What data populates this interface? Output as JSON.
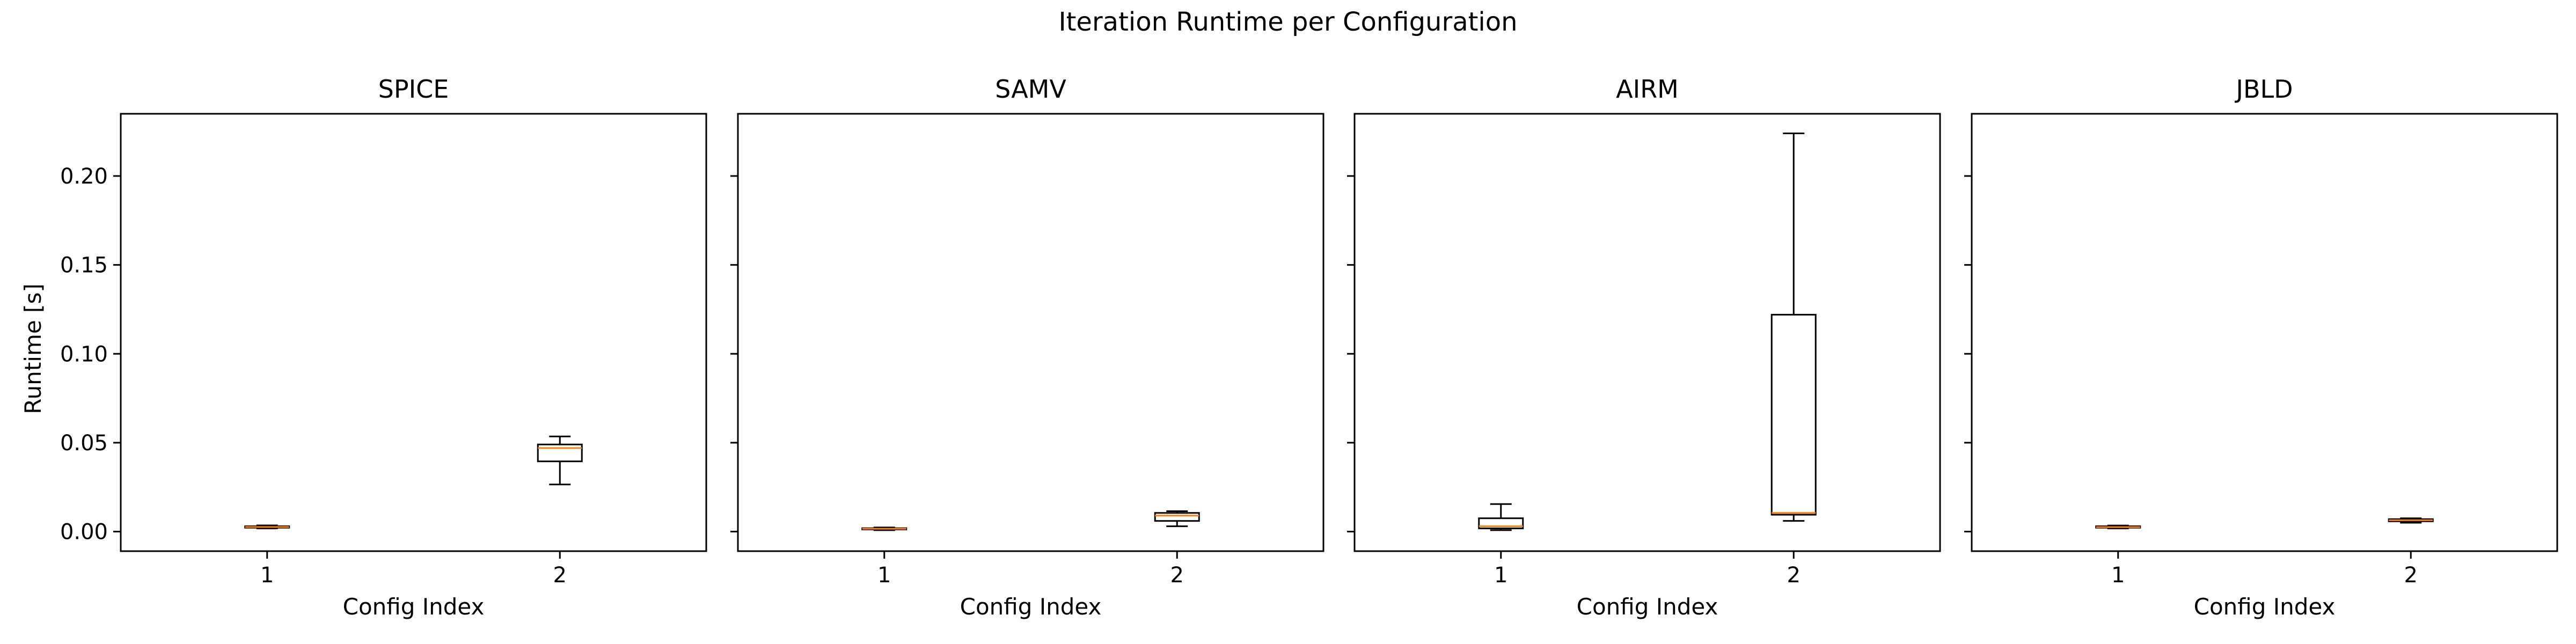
{
  "figure": {
    "suptitle": "Iteration Runtime per Configuration"
  },
  "colors": {
    "box": "#000000",
    "median": "#ff7f0e",
    "background": "#ffffff"
  },
  "chart_data": {
    "type": "box",
    "shared_y": true,
    "ylabel": "Runtime [s]",
    "xlabel": "Config Index",
    "ylim": [
      -0.011,
      0.235
    ],
    "yticks": [
      0.0,
      0.05,
      0.1,
      0.15,
      0.2
    ],
    "ytick_labels": [
      "0.00",
      "0.05",
      "0.10",
      "0.15",
      "0.20"
    ],
    "categories": [
      "1",
      "2"
    ],
    "panels": [
      {
        "title": "SPICE",
        "boxes": [
          {
            "category": "1",
            "whisker_low": 0.0018,
            "q1": 0.0022,
            "median": 0.0026,
            "q3": 0.003,
            "whisker_high": 0.0035
          },
          {
            "category": "2",
            "whisker_low": 0.0265,
            "q1": 0.0395,
            "median": 0.047,
            "q3": 0.049,
            "whisker_high": 0.0535
          }
        ]
      },
      {
        "title": "SAMV",
        "boxes": [
          {
            "category": "1",
            "whisker_low": 0.0008,
            "q1": 0.0012,
            "median": 0.0016,
            "q3": 0.0019,
            "whisker_high": 0.0023
          },
          {
            "category": "2",
            "whisker_low": 0.003,
            "q1": 0.006,
            "median": 0.009,
            "q3": 0.0105,
            "whisker_high": 0.0115
          }
        ]
      },
      {
        "title": "AIRM",
        "boxes": [
          {
            "category": "1",
            "whisker_low": 0.0008,
            "q1": 0.0018,
            "median": 0.003,
            "q3": 0.0075,
            "whisker_high": 0.0155
          },
          {
            "category": "2",
            "whisker_low": 0.006,
            "q1": 0.0095,
            "median": 0.0105,
            "q3": 0.122,
            "whisker_high": 0.224
          }
        ]
      },
      {
        "title": "JBLD",
        "boxes": [
          {
            "category": "1",
            "whisker_low": 0.0018,
            "q1": 0.0022,
            "median": 0.0025,
            "q3": 0.003,
            "whisker_high": 0.0034
          },
          {
            "category": "2",
            "whisker_low": 0.005,
            "q1": 0.0058,
            "median": 0.0064,
            "q3": 0.007,
            "whisker_high": 0.0075
          }
        ]
      }
    ]
  }
}
